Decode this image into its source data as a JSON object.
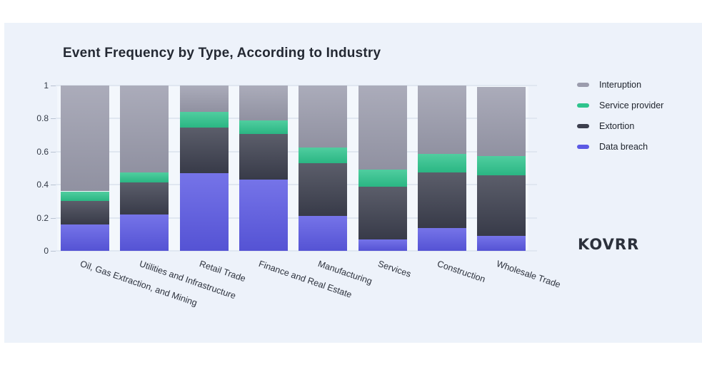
{
  "page": {
    "background": "#ffffff",
    "card_background": "#edf2fa"
  },
  "header": {
    "title": "Event Frequency by Type, According to Industry"
  },
  "brand": {
    "logo_text": "KOVRR"
  },
  "chart_data": {
    "type": "bar",
    "stacked": true,
    "title": "Event Frequency by Type, According to Industry",
    "categories": [
      "Oil, Gas Extraction, and Mining",
      "Utilities and Infrastructure",
      "Retail Trade",
      "Finance and Real Estate",
      "Manufacturing",
      "Services",
      "Construction",
      "Wholesale Trade"
    ],
    "series": [
      {
        "name": "Data breach",
        "color": "#5b59e4",
        "values": [
          0.16,
          0.22,
          0.47,
          0.43,
          0.21,
          0.07,
          0.14,
          0.09
        ]
      },
      {
        "name": "Extortion",
        "color": "#3c3f4e",
        "values": [
          0.14,
          0.195,
          0.275,
          0.275,
          0.32,
          0.32,
          0.335,
          0.365
        ]
      },
      {
        "name": "Service provider",
        "color": "#2ec48d",
        "values": [
          0.06,
          0.06,
          0.095,
          0.085,
          0.095,
          0.1,
          0.11,
          0.12
        ]
      },
      {
        "name": "Interuption",
        "color": "#9b9cad",
        "values": [
          0.64,
          0.525,
          0.16,
          0.21,
          0.375,
          0.51,
          0.415,
          0.415
        ]
      }
    ],
    "legend_order_top_to_bottom": [
      "Interuption",
      "Service provider",
      "Extortion",
      "Data breach"
    ],
    "yticks": [
      "0",
      "0.2",
      "0.4",
      "0.6",
      "0.8",
      "1"
    ],
    "ylim": [
      0,
      1
    ],
    "grid": true,
    "legend_position": "right",
    "xlabel": "",
    "ylabel": ""
  }
}
